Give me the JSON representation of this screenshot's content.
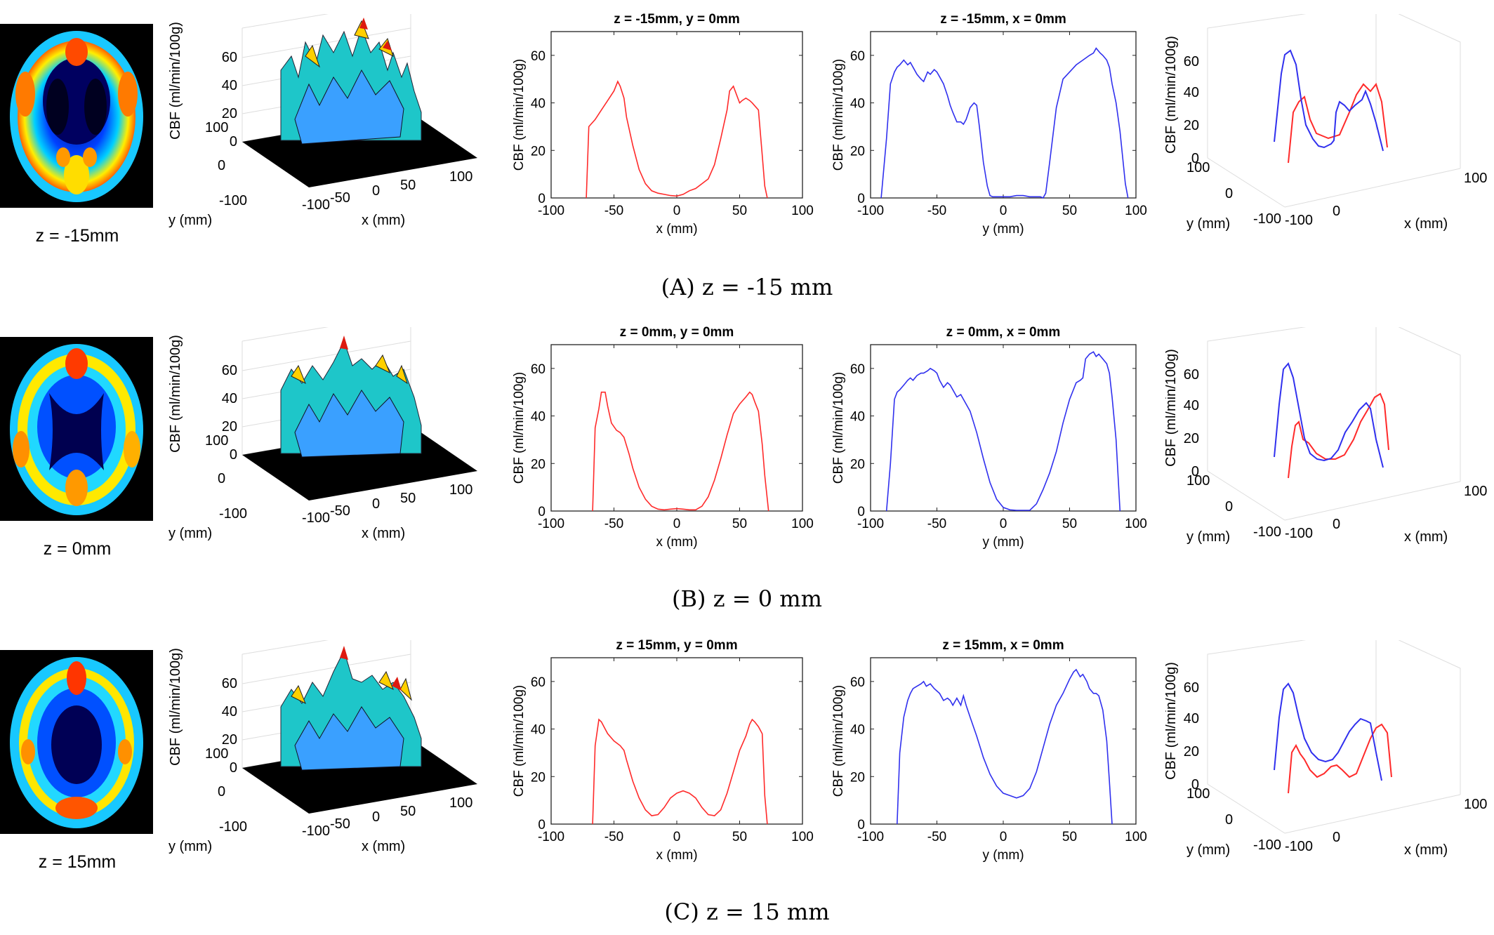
{
  "rows": [
    {
      "slice_label": "z = -15mm",
      "caption": "(A) z = -15 mm",
      "title_y": "z = -15mm, y = 0mm",
      "title_x": "z = -15mm, x = 0mm"
    },
    {
      "slice_label": "z = 0mm",
      "caption": "(B) z = 0 mm",
      "title_y": "z = 0mm, y = 0mm",
      "title_x": "z = 0mm, x = 0mm"
    },
    {
      "slice_label": "z = 15mm",
      "caption": "(C) z = 15 mm",
      "title_y": "z = 15mm, y = 0mm",
      "title_x": "z = 15mm, x = 0mm"
    }
  ],
  "axis_labels": {
    "cbf": "CBF (ml/min/100g)",
    "x": "x (mm)",
    "y": "y (mm)"
  },
  "colors": {
    "profile_y0": "#ff2a2a",
    "profile_x0": "#3030ee"
  },
  "chart_data": [
    {
      "type": "line",
      "row": "A",
      "title": "z = -15mm, y = 0mm",
      "xlabel": "x (mm)",
      "ylabel": "CBF (ml/min/100g)",
      "xlim": [
        -100,
        100
      ],
      "ylim": [
        0,
        70
      ],
      "xticks": [
        -100,
        -50,
        0,
        50,
        100
      ],
      "yticks": [
        0,
        20,
        40,
        60
      ],
      "series": [
        {
          "color": "#ff2a2a",
          "x": [
            -72,
            -70,
            -65,
            -60,
            -55,
            -50,
            -47,
            -45,
            -42,
            -40,
            -35,
            -30,
            -25,
            -20,
            -15,
            -10,
            -5,
            0,
            5,
            10,
            15,
            20,
            25,
            30,
            35,
            40,
            42,
            45,
            50,
            52,
            55,
            58,
            60,
            65,
            68,
            70,
            72
          ],
          "y": [
            0,
            30,
            33,
            37,
            41,
            45,
            49,
            47,
            42,
            34,
            22,
            12,
            6,
            3,
            2,
            1.5,
            1,
            0.8,
            1.5,
            3,
            4,
            6,
            8,
            14,
            25,
            37,
            45,
            47,
            40,
            41,
            42,
            41,
            40,
            37,
            18,
            5,
            0
          ]
        }
      ]
    },
    {
      "type": "line",
      "row": "A",
      "title": "z = -15mm, x = 0mm",
      "xlabel": "y (mm)",
      "ylabel": "CBF (ml/min/100g)",
      "xlim": [
        -100,
        100
      ],
      "ylim": [
        0,
        70
      ],
      "xticks": [
        -100,
        -50,
        0,
        50,
        100
      ],
      "yticks": [
        0,
        20,
        40,
        60
      ],
      "series": [
        {
          "color": "#3030ee",
          "x": [
            -92,
            -88,
            -85,
            -82,
            -80,
            -78,
            -75,
            -72,
            -70,
            -68,
            -65,
            -62,
            -60,
            -57,
            -55,
            -52,
            -50,
            -48,
            -45,
            -42,
            -40,
            -38,
            -35,
            -32,
            -30,
            -28,
            -25,
            -22,
            -20,
            -18,
            -15,
            -12,
            -10,
            -8,
            -5,
            0,
            5,
            10,
            15,
            20,
            25,
            28,
            30,
            32,
            35,
            40,
            45,
            50,
            55,
            60,
            65,
            68,
            70,
            73,
            75,
            78,
            80,
            82,
            85,
            88,
            90,
            92,
            94
          ],
          "y": [
            0,
            25,
            48,
            53,
            55,
            56,
            58,
            56,
            57,
            55,
            52,
            50,
            49,
            53,
            52,
            54,
            53,
            51,
            48,
            43,
            39,
            36,
            32,
            32,
            31,
            33,
            38,
            40,
            39,
            30,
            15,
            5,
            1,
            0.5,
            0.5,
            0.5,
            0.5,
            1,
            1,
            0.5,
            0.5,
            0.5,
            0,
            2,
            15,
            38,
            50,
            53,
            56,
            58,
            60,
            61,
            63,
            61,
            60,
            58,
            55,
            48,
            40,
            28,
            17,
            6,
            0
          ]
        }
      ]
    },
    {
      "type": "line",
      "row": "B",
      "title": "z = 0mm, y = 0mm",
      "xlabel": "x (mm)",
      "ylabel": "CBF (ml/min/100g)",
      "xlim": [
        -100,
        100
      ],
      "ylim": [
        0,
        70
      ],
      "xticks": [
        -100,
        -50,
        0,
        50,
        100
      ],
      "yticks": [
        0,
        20,
        40,
        60
      ],
      "series": [
        {
          "color": "#ff2a2a",
          "x": [
            -67,
            -65,
            -62,
            -60,
            -57,
            -55,
            -52,
            -48,
            -45,
            -42,
            -38,
            -35,
            -30,
            -25,
            -20,
            -15,
            -10,
            -5,
            0,
            5,
            10,
            15,
            20,
            25,
            30,
            35,
            40,
            45,
            50,
            55,
            58,
            60,
            62,
            65,
            68,
            70,
            73
          ],
          "y": [
            0,
            35,
            43,
            50,
            50,
            44,
            37,
            34,
            33,
            31,
            24,
            18,
            10,
            5,
            2,
            0.8,
            0.5,
            0.8,
            1,
            0.8,
            0.5,
            0.5,
            2,
            6,
            13,
            22,
            32,
            41,
            45,
            48,
            50,
            49,
            46,
            42,
            28,
            15,
            0
          ]
        }
      ]
    },
    {
      "type": "line",
      "row": "B",
      "title": "z = 0mm, x = 0mm",
      "xlabel": "y (mm)",
      "ylabel": "CBF (ml/min/100g)",
      "xlim": [
        -100,
        100
      ],
      "ylim": [
        0,
        70
      ],
      "xticks": [
        -100,
        -50,
        0,
        50,
        100
      ],
      "yticks": [
        0,
        20,
        40,
        60
      ],
      "series": [
        {
          "color": "#3030ee",
          "x": [
            -88,
            -85,
            -82,
            -80,
            -78,
            -75,
            -72,
            -70,
            -68,
            -65,
            -62,
            -60,
            -57,
            -55,
            -52,
            -50,
            -48,
            -45,
            -42,
            -40,
            -38,
            -35,
            -32,
            -30,
            -25,
            -20,
            -15,
            -10,
            -5,
            0,
            5,
            10,
            15,
            20,
            25,
            30,
            35,
            40,
            45,
            50,
            55,
            58,
            60,
            62,
            65,
            68,
            70,
            72,
            75,
            78,
            80,
            82,
            85,
            88
          ],
          "y": [
            0,
            20,
            47,
            50,
            51,
            53,
            55,
            56,
            55,
            57,
            58,
            58,
            59,
            60,
            59,
            58,
            55,
            52,
            54,
            53,
            51,
            48,
            49,
            47,
            42,
            33,
            22,
            12,
            5,
            1.5,
            0.5,
            0.3,
            0.3,
            0.3,
            3,
            9,
            16,
            25,
            37,
            47,
            54,
            55,
            56,
            64,
            66,
            67,
            65,
            66,
            64,
            62,
            58,
            48,
            30,
            0
          ]
        }
      ]
    },
    {
      "type": "line",
      "row": "C",
      "title": "z = 15mm, y = 0mm",
      "xlabel": "x (mm)",
      "ylabel": "CBF (ml/min/100g)",
      "xlim": [
        -100,
        100
      ],
      "ylim": [
        0,
        70
      ],
      "xticks": [
        -100,
        -50,
        0,
        50,
        100
      ],
      "yticks": [
        0,
        20,
        40,
        60
      ],
      "series": [
        {
          "color": "#ff2a2a",
          "x": [
            -67,
            -65,
            -62,
            -60,
            -57,
            -55,
            -50,
            -45,
            -42,
            -40,
            -35,
            -30,
            -25,
            -20,
            -15,
            -10,
            -5,
            0,
            5,
            10,
            15,
            20,
            25,
            30,
            35,
            40,
            45,
            50,
            55,
            58,
            60,
            62,
            65,
            68,
            70,
            72
          ],
          "y": [
            0,
            33,
            44,
            43,
            40,
            38,
            35,
            33,
            31,
            27,
            18,
            11,
            6,
            3.5,
            4,
            7,
            11,
            13,
            14,
            13,
            11,
            7,
            4,
            3.5,
            6,
            13,
            22,
            31,
            37,
            42,
            44,
            43,
            41,
            38,
            12,
            0
          ]
        }
      ]
    },
    {
      "type": "line",
      "row": "C",
      "title": "z = 15mm, x = 0mm",
      "xlabel": "y (mm)",
      "ylabel": "CBF (ml/min/100g)",
      "xlim": [
        -100,
        100
      ],
      "ylim": [
        0,
        70
      ],
      "xticks": [
        -100,
        -50,
        0,
        50,
        100
      ],
      "yticks": [
        0,
        20,
        40,
        60
      ],
      "series": [
        {
          "color": "#3030ee",
          "x": [
            -80,
            -78,
            -75,
            -72,
            -70,
            -68,
            -65,
            -62,
            -60,
            -58,
            -55,
            -52,
            -50,
            -48,
            -45,
            -42,
            -40,
            -38,
            -35,
            -32,
            -30,
            -28,
            -25,
            -20,
            -15,
            -10,
            -5,
            0,
            5,
            10,
            15,
            20,
            25,
            30,
            35,
            40,
            45,
            50,
            53,
            55,
            58,
            60,
            63,
            65,
            68,
            70,
            72,
            75,
            78,
            80,
            82
          ],
          "y": [
            0,
            30,
            45,
            52,
            55,
            57,
            58,
            59,
            60,
            58,
            59,
            57,
            56,
            55,
            52,
            53,
            52,
            50,
            53,
            50,
            54,
            50,
            45,
            37,
            28,
            21,
            16,
            13,
            12,
            11,
            12,
            15,
            22,
            32,
            42,
            50,
            55,
            61,
            64,
            65,
            62,
            63,
            60,
            57,
            55,
            55,
            54,
            48,
            35,
            18,
            0
          ]
        }
      ]
    }
  ]
}
